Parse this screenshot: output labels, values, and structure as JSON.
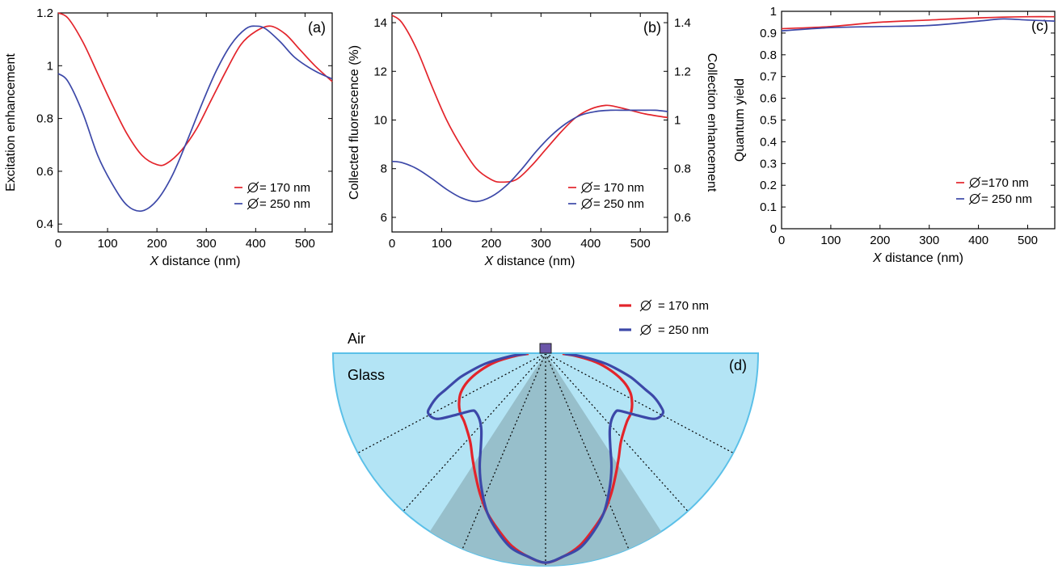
{
  "colors": {
    "red": "#e3242b",
    "blue": "#3c48a8",
    "glass": "#b3e4f5",
    "glass_edge": "#5bc0e8",
    "cone": "#97bfcb",
    "emitter": "#6a55a8"
  },
  "diameter_symbol_glyph": "∅",
  "chart_data": [
    {
      "id": "a",
      "type": "line",
      "panel_label": "(a)",
      "xlabel_italic": "X",
      "xlabel_rest": " distance (nm)",
      "ylabel": "Excitation enhancement",
      "xlim": [
        0,
        555
      ],
      "ylim": [
        0.37,
        1.2
      ],
      "xticks": [
        0,
        100,
        200,
        300,
        400,
        500
      ],
      "yticks": [
        0.4,
        0.6,
        0.8,
        1,
        1.2
      ],
      "ytick_labels": [
        "0.4",
        "0.6",
        "0.8",
        "1",
        "1.2"
      ],
      "legend": [
        {
          "text": "= 170 nm",
          "color": "red"
        },
        {
          "text": "= 250 nm",
          "color": "blue"
        }
      ],
      "series": [
        {
          "color": "red",
          "x": [
            0,
            20,
            50,
            80,
            110,
            140,
            170,
            200,
            220,
            250,
            280,
            310,
            340,
            370,
            400,
            430,
            460,
            490,
            520,
            555
          ],
          "y": [
            1.2,
            1.18,
            1.09,
            0.97,
            0.85,
            0.74,
            0.66,
            0.625,
            0.63,
            0.68,
            0.76,
            0.87,
            0.98,
            1.08,
            1.13,
            1.15,
            1.12,
            1.06,
            1.0,
            0.94
          ]
        },
        {
          "color": "blue",
          "x": [
            0,
            20,
            50,
            80,
            110,
            140,
            170,
            200,
            230,
            260,
            290,
            320,
            350,
            380,
            400,
            420,
            450,
            480,
            520,
            555
          ],
          "y": [
            0.97,
            0.94,
            0.82,
            0.66,
            0.55,
            0.47,
            0.45,
            0.49,
            0.58,
            0.71,
            0.85,
            0.98,
            1.08,
            1.14,
            1.15,
            1.14,
            1.09,
            1.03,
            0.98,
            0.95
          ]
        }
      ]
    },
    {
      "id": "b",
      "type": "line",
      "panel_label": "(b)",
      "xlabel_italic": "X",
      "xlabel_rest": " distance (nm)",
      "ylabel": "Collected fluorescence (%)",
      "ylabel_right": "Collection enhancement",
      "xlim": [
        0,
        555
      ],
      "ylim": [
        5.4,
        14.4
      ],
      "xticks": [
        0,
        100,
        200,
        300,
        400,
        500
      ],
      "yticks": [
        6,
        8,
        10,
        12,
        14
      ],
      "ytick_labels": [
        "6",
        "8",
        "10",
        "12",
        "14"
      ],
      "y2ticks": [
        6.0,
        8.0,
        10.0,
        12.0,
        14.0
      ],
      "y2tick_labels": [
        "0.6",
        "0.8",
        "1",
        "1.2",
        "1.4"
      ],
      "legend": [
        {
          "text": "= 170 nm",
          "color": "red"
        },
        {
          "text": "= 250 nm",
          "color": "blue"
        }
      ],
      "series": [
        {
          "color": "red",
          "x": [
            0,
            20,
            50,
            80,
            110,
            140,
            170,
            200,
            220,
            250,
            280,
            310,
            340,
            370,
            400,
            430,
            450,
            480,
            510,
            555
          ],
          "y": [
            14.3,
            14.0,
            12.9,
            11.4,
            10.0,
            8.9,
            8.0,
            7.55,
            7.45,
            7.55,
            8.1,
            8.8,
            9.5,
            10.1,
            10.45,
            10.6,
            10.55,
            10.4,
            10.25,
            10.1
          ]
        },
        {
          "color": "blue",
          "x": [
            0,
            20,
            50,
            80,
            110,
            140,
            170,
            200,
            230,
            260,
            290,
            320,
            350,
            380,
            410,
            440,
            470,
            500,
            530,
            555
          ],
          "y": [
            8.3,
            8.25,
            8.0,
            7.6,
            7.15,
            6.8,
            6.65,
            6.85,
            7.3,
            7.95,
            8.7,
            9.35,
            9.85,
            10.2,
            10.35,
            10.4,
            10.4,
            10.4,
            10.4,
            10.35
          ]
        }
      ]
    },
    {
      "id": "c",
      "type": "line",
      "panel_label": "(c)",
      "xlabel_italic": "X",
      "xlabel_rest": " distance (nm)",
      "ylabel": "Quantum yield",
      "xlim": [
        0,
        555
      ],
      "ylim": [
        0,
        1
      ],
      "xticks": [
        0,
        100,
        200,
        300,
        400,
        500
      ],
      "yticks": [
        0,
        0.1,
        0.2,
        0.3,
        0.4,
        0.5,
        0.6,
        0.7,
        0.8,
        0.9,
        1
      ],
      "ytick_labels": [
        "0",
        "0.1",
        "0.2",
        "0.3",
        "0.4",
        "0.5",
        "0.6",
        "0.7",
        "0.8",
        "0.9",
        "1"
      ],
      "legend": [
        {
          "text": "=170 nm",
          "color": "red"
        },
        {
          "text": "= 250 nm",
          "color": "blue"
        }
      ],
      "series": [
        {
          "color": "red",
          "x": [
            0,
            100,
            200,
            300,
            400,
            500,
            555
          ],
          "y": [
            0.92,
            0.93,
            0.95,
            0.96,
            0.97,
            0.975,
            0.975
          ]
        },
        {
          "color": "blue",
          "x": [
            0,
            100,
            200,
            300,
            400,
            450,
            500,
            555
          ],
          "y": [
            0.91,
            0.925,
            0.93,
            0.935,
            0.955,
            0.965,
            0.96,
            0.955
          ]
        }
      ]
    },
    {
      "id": "d",
      "type": "polar",
      "panel_label": "(d)",
      "air_label": "Air",
      "glass_label": "Glass",
      "legend": [
        {
          "text": "= 170 nm",
          "color": "red"
        },
        {
          "text": "= 250 nm",
          "color": "blue"
        }
      ],
      "dotted_angles_deg": [
        0,
        23,
        42,
        62
      ],
      "cone_half_angle_deg": 33,
      "series": [
        {
          "color": "red",
          "theta_deg": [
            0,
            5,
            10,
            15,
            20,
            25,
            30,
            35,
            40,
            45,
            50,
            55,
            60,
            65,
            70,
            75,
            80,
            85,
            88
          ],
          "r": [
            0.985,
            0.96,
            0.92,
            0.86,
            0.8,
            0.73,
            0.66,
            0.6,
            0.55,
            0.52,
            0.5,
            0.49,
            0.47,
            0.44,
            0.39,
            0.32,
            0.24,
            0.14,
            0.08
          ]
        },
        {
          "color": "blue",
          "theta_deg": [
            0,
            5,
            10,
            15,
            20,
            25,
            30,
            35,
            40,
            45,
            50,
            52,
            55,
            58,
            60,
            63,
            65,
            68,
            70,
            73,
            75,
            80,
            85,
            88
          ],
          "r": [
            0.985,
            0.96,
            0.93,
            0.87,
            0.8,
            0.71,
            0.62,
            0.53,
            0.47,
            0.44,
            0.43,
            0.44,
            0.5,
            0.58,
            0.61,
            0.62,
            0.6,
            0.55,
            0.5,
            0.44,
            0.4,
            0.29,
            0.17,
            0.09
          ]
        }
      ]
    }
  ]
}
